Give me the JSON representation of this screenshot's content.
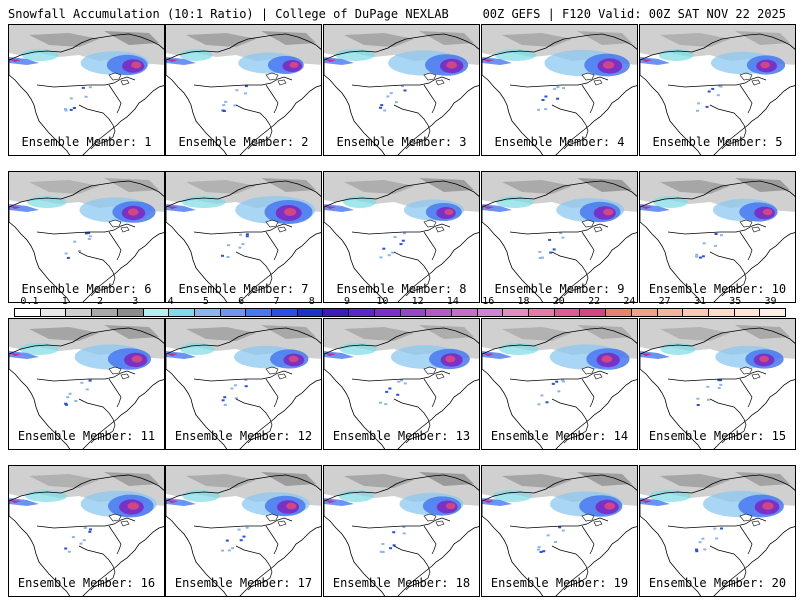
{
  "header": {
    "title": "Snowfall Accumulation (10:1 Ratio) | College of DuPage NEXLAB",
    "run_info": "00Z GEFS | F120 Valid: 00Z SAT NOV 22 2025"
  },
  "members": [
    {
      "label": "Ensemble Member: 1",
      "intensity": 0.85
    },
    {
      "label": "Ensemble Member: 2",
      "intensity": 0.75
    },
    {
      "label": "Ensemble Member: 3",
      "intensity": 0.9
    },
    {
      "label": "Ensemble Member: 4",
      "intensity": 0.95
    },
    {
      "label": "Ensemble Member: 5",
      "intensity": 0.8
    },
    {
      "label": "Ensemble Member: 6",
      "intensity": 0.9
    },
    {
      "label": "Ensemble Member: 7",
      "intensity": 1.0
    },
    {
      "label": "Ensemble Member: 8",
      "intensity": 0.75
    },
    {
      "label": "Ensemble Member: 9",
      "intensity": 0.85
    },
    {
      "label": "Ensemble Member: 10",
      "intensity": 0.8
    },
    {
      "label": "Ensemble Member: 11",
      "intensity": 0.9
    },
    {
      "label": "Ensemble Member: 12",
      "intensity": 0.8
    },
    {
      "label": "Ensemble Member: 13",
      "intensity": 0.85
    },
    {
      "label": "Ensemble Member: 14",
      "intensity": 0.9
    },
    {
      "label": "Ensemble Member: 15",
      "intensity": 0.8
    },
    {
      "label": "Ensemble Member: 16",
      "intensity": 0.95
    },
    {
      "label": "Ensemble Member: 17",
      "intensity": 0.85
    },
    {
      "label": "Ensemble Member: 18",
      "intensity": 0.8
    },
    {
      "label": "Ensemble Member: 19",
      "intensity": 0.9
    },
    {
      "label": "Ensemble Member: 20",
      "intensity": 0.95
    }
  ],
  "colorbar": {
    "ticks": [
      "0.1",
      "1",
      "2",
      "3",
      "4",
      "5",
      "6",
      "7",
      "8",
      "9",
      "10",
      "12",
      "14",
      "16",
      "18",
      "20",
      "22",
      "24",
      "27",
      "31",
      "35",
      "39"
    ],
    "colors": [
      "#ffffff",
      "#e8e8e8",
      "#d0d0d0",
      "#a8a8a8",
      "#8c8c8c",
      "#b4f0f0",
      "#7ddce6",
      "#8cb4f0",
      "#6e96f0",
      "#4678f0",
      "#2850e6",
      "#1e32c8",
      "#3c1eb4",
      "#5a28c8",
      "#7832c8",
      "#9646c8",
      "#b45ac8",
      "#c86ec8",
      "#d282d2",
      "#e68cbe",
      "#e678aa",
      "#dc5a96",
      "#d24682",
      "#e6826e",
      "#f0a08c",
      "#f5b4a0",
      "#fac8b4",
      "#ffdcc8",
      "#ffe6d7",
      "#fff0e6"
    ]
  }
}
